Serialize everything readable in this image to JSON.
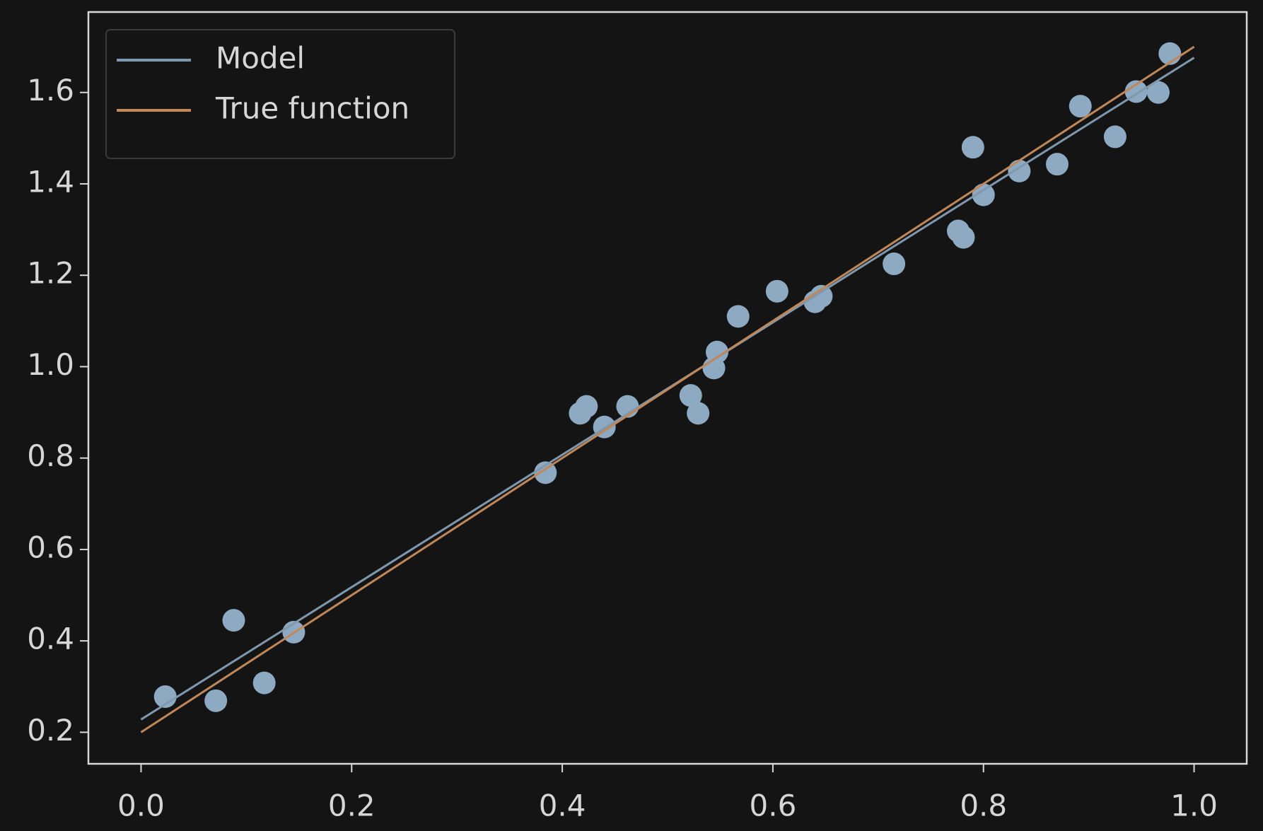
{
  "chart_data": {
    "type": "scatter",
    "xlim": [
      -0.05,
      1.05
    ],
    "ylim": [
      0.131,
      1.776
    ],
    "xticks": [
      {
        "value": 0,
        "label": "0.0"
      },
      0.2,
      0.4,
      0.6,
      0.8,
      {
        "value": 1,
        "label": "1.0"
      }
    ],
    "yticks": [
      0.2,
      0.4,
      0.6,
      0.8,
      {
        "value": 1,
        "label": "1.0"
      },
      1.2,
      1.4,
      1.6
    ],
    "grid": false,
    "legend": "upper left",
    "series": [
      {
        "name": "Model",
        "type": "line",
        "color": "#7f98ae",
        "x": [
          0,
          1
        ],
        "values": [
          0.228,
          1.676
        ]
      },
      {
        "name": "True function",
        "type": "line",
        "color": "#c08759",
        "x": [
          0,
          1
        ],
        "values": [
          0.2,
          1.7
        ]
      },
      {
        "type": "scatter",
        "color": "#8eaac2",
        "x": [
          0.023,
          0.071,
          0.088,
          0.117,
          0.145,
          0.384,
          0.417,
          0.423,
          0.44,
          0.462,
          0.522,
          0.529,
          0.544,
          0.547,
          0.567,
          0.604,
          0.64,
          0.646,
          0.715,
          0.776,
          0.781,
          0.79,
          0.8,
          0.834,
          0.87,
          0.892,
          0.925,
          0.945,
          0.966,
          0.977
        ],
        "values": [
          0.278,
          0.269,
          0.445,
          0.308,
          0.419,
          0.768,
          0.898,
          0.913,
          0.868,
          0.913,
          0.937,
          0.898,
          0.997,
          1.032,
          1.11,
          1.165,
          1.142,
          1.154,
          1.225,
          1.297,
          1.283,
          1.48,
          1.376,
          1.428,
          1.443,
          1.57,
          1.503,
          1.602,
          1.6,
          1.685
        ]
      }
    ]
  }
}
